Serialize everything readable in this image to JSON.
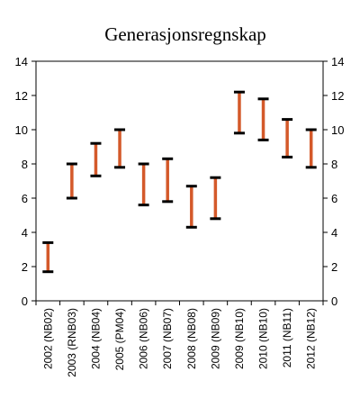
{
  "chart_data": {
    "type": "range",
    "title": "Generasjonsregnskap",
    "xlabel": "",
    "ylabel": "",
    "ylim": [
      0,
      14
    ],
    "yticks": [
      0,
      2,
      4,
      6,
      8,
      10,
      12,
      14
    ],
    "secondary_yaxis": true,
    "grid": false,
    "legend": "none",
    "categories": [
      "2002 (NB02)",
      "2003 (RNB03)",
      "2004 (NB04)",
      "2005 (PM04)",
      "2006 (NB06)",
      "2007 (NB07)",
      "2008 (NB08)",
      "2009 (NB09)",
      "2009 (NB10)",
      "2010 (NB10)",
      "2011 (NB11)",
      "2012 (NB12)"
    ],
    "low": [
      1.7,
      6.0,
      7.3,
      7.8,
      5.6,
      5.8,
      4.3,
      4.8,
      9.8,
      9.4,
      8.4,
      7.8
    ],
    "high": [
      3.4,
      8.0,
      9.2,
      10.0,
      8.0,
      8.3,
      6.7,
      7.2,
      12.2,
      11.8,
      10.6,
      10.0
    ],
    "colors": {
      "bar": "#d4592a",
      "cap": "#000000",
      "axis": "#000000"
    }
  }
}
